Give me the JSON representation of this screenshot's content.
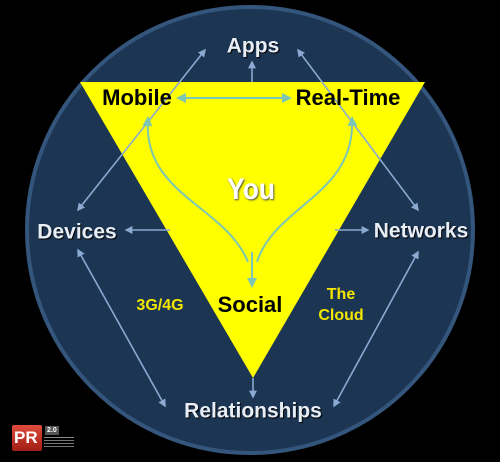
{
  "diagram": {
    "center_label": "You",
    "triangle_labels": {
      "top_left": "Mobile",
      "top_right": "Real-Time",
      "bottom": "Social"
    },
    "outer_nodes": {
      "top": "Apps",
      "left": "Devices",
      "right": "Networks",
      "bottom": "Relationships"
    },
    "annotations": {
      "network_tech": "3G/4G",
      "cloud_line1": "The",
      "cloud_line2": "Cloud"
    }
  },
  "logo": {
    "text": "PR",
    "version": "2.0"
  },
  "colors": {
    "background": "#000000",
    "circle_fill": "#1c3553",
    "circle_stroke": "#34557c",
    "triangle_fill": "#ffff00",
    "arrow_outer": "#8aaad2",
    "arrow_inner": "#7ec6b4",
    "accent_text": "#f2e600"
  }
}
